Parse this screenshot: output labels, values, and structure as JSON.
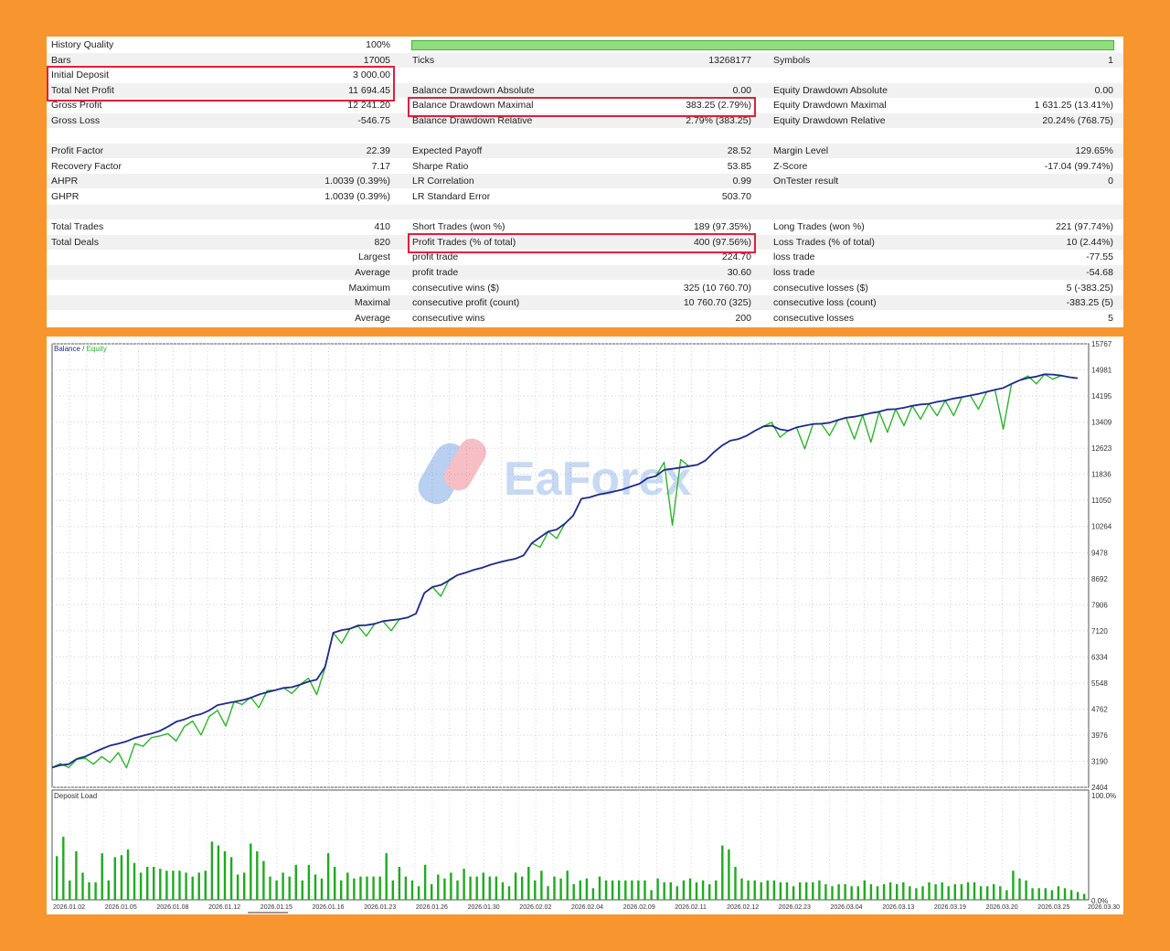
{
  "report": {
    "rows": [
      [
        [
          "History Quality",
          "100%"
        ],
        null,
        null
      ],
      [
        [
          "Bars",
          "17005"
        ],
        [
          "Ticks",
          "13268177"
        ],
        [
          "Symbols",
          "1"
        ]
      ],
      [
        [
          "Initial Deposit",
          "3 000.00"
        ],
        null,
        null
      ],
      [
        [
          "Total Net Profit",
          "11 694.45"
        ],
        [
          "Balance Drawdown Absolute",
          "0.00"
        ],
        [
          "Equity Drawdown Absolute",
          "0.00"
        ]
      ],
      [
        [
          "Gross Profit",
          "12 241.20"
        ],
        [
          "Balance Drawdown Maximal",
          "383.25 (2.79%)"
        ],
        [
          "Equity Drawdown Maximal",
          "1 631.25 (13.41%)"
        ]
      ],
      [
        [
          "Gross Loss",
          "-546.75"
        ],
        [
          "Balance Drawdown Relative",
          "2.79% (383.25)"
        ],
        [
          "Equity Drawdown Relative",
          "20.24% (768.75)"
        ]
      ],
      [
        null,
        null,
        null
      ],
      [
        [
          "Profit Factor",
          "22.39"
        ],
        [
          "Expected Payoff",
          "28.52"
        ],
        [
          "Margin Level",
          "129.65%"
        ]
      ],
      [
        [
          "Recovery Factor",
          "7.17"
        ],
        [
          "Sharpe Ratio",
          "53.85"
        ],
        [
          "Z-Score",
          "-17.04 (99.74%)"
        ]
      ],
      [
        [
          "AHPR",
          "1.0039 (0.39%)"
        ],
        [
          "LR Correlation",
          "0.99"
        ],
        [
          "OnTester result",
          "0"
        ]
      ],
      [
        [
          "GHPR",
          "1.0039 (0.39%)"
        ],
        [
          "LR Standard Error",
          "503.70"
        ],
        null
      ],
      [
        null,
        null,
        null
      ],
      [
        [
          "Total Trades",
          "410"
        ],
        [
          "Short Trades (won %)",
          "189 (97.35%)"
        ],
        [
          "Long Trades (won %)",
          "221 (97.74%)"
        ]
      ],
      [
        [
          "Total Deals",
          "820"
        ],
        [
          "Profit Trades (% of total)",
          "400 (97.56%)"
        ],
        [
          "Loss Trades (% of total)",
          "10 (2.44%)"
        ]
      ],
      [
        [
          "",
          "Largest"
        ],
        [
          "profit trade",
          "224.70"
        ],
        [
          "loss trade",
          "-77.55"
        ]
      ],
      [
        [
          "",
          "Average"
        ],
        [
          "profit trade",
          "30.60"
        ],
        [
          "loss trade",
          "-54.68"
        ]
      ],
      [
        [
          "",
          "Maximum"
        ],
        [
          "consecutive wins ($)",
          "325 (10 760.70)"
        ],
        [
          "consecutive losses ($)",
          "5 (-383.25)"
        ]
      ],
      [
        [
          "",
          "Maximal"
        ],
        [
          "consecutive profit (count)",
          "10 760.70 (325)"
        ],
        [
          "consecutive loss (count)",
          "-383.25 (5)"
        ]
      ],
      [
        [
          "",
          "Average"
        ],
        [
          "consecutive wins",
          "200"
        ],
        [
          "consecutive losses",
          "5"
        ]
      ]
    ]
  },
  "watermark": "EaForex",
  "chart_data": [
    {
      "type": "line",
      "legend": [
        "Balance",
        "/",
        "Equity"
      ],
      "ylim": [
        2404,
        15767
      ],
      "yticks": [
        15767,
        14981,
        14195,
        13409,
        12623,
        11836,
        11050,
        10264,
        9478,
        8692,
        7906,
        7120,
        6334,
        5548,
        4762,
        3976,
        3190,
        2404
      ],
      "series": [
        {
          "name": "Balance",
          "color": "#1f2a8a",
          "values": [
            3000,
            3070,
            3100,
            3260,
            3330,
            3450,
            3560,
            3660,
            3720,
            3790,
            3890,
            3960,
            4020,
            4100,
            4230,
            4380,
            4450,
            4550,
            4610,
            4720,
            4880,
            4930,
            4980,
            5030,
            5100,
            5200,
            5270,
            5330,
            5400,
            5420,
            5500,
            5590,
            5650,
            6030,
            7060,
            7140,
            7180,
            7280,
            7290,
            7330,
            7410,
            7440,
            7470,
            7520,
            7640,
            8260,
            8440,
            8500,
            8640,
            8800,
            8870,
            8960,
            9020,
            9110,
            9180,
            9240,
            9290,
            9390,
            9760,
            9940,
            10110,
            10170,
            10350,
            10590,
            11100,
            11140,
            11220,
            11270,
            11320,
            11380,
            11470,
            11550,
            11720,
            11780,
            11970,
            12000,
            12040,
            12080,
            12120,
            12250,
            12500,
            12700,
            12850,
            12900,
            13000,
            13150,
            13280,
            13300,
            13190,
            13150,
            13250,
            13300,
            13350,
            13360,
            13390,
            13470,
            13540,
            13570,
            13620,
            13680,
            13720,
            13790,
            13800,
            13840,
            13900,
            13940,
            13960,
            14020,
            14060,
            14120,
            14160,
            14210,
            14260,
            14320,
            14380,
            14440,
            14560,
            14670,
            14740,
            14780,
            14850,
            14840,
            14810,
            14760,
            14730
          ]
        },
        {
          "name": "Equity",
          "color": "#2bb52b",
          "values": [
            3000,
            3120,
            3000,
            3250,
            3280,
            3100,
            3330,
            3150,
            3450,
            2990,
            3720,
            3640,
            3900,
            3950,
            4020,
            3800,
            4240,
            4400,
            3980,
            4540,
            4720,
            4250,
            4980,
            4900,
            5120,
            4800,
            5320,
            5330,
            5400,
            5230,
            5500,
            5690,
            5200,
            6000,
            7060,
            6740,
            7180,
            7260,
            6960,
            7330,
            7410,
            7120,
            7470,
            7520,
            7640,
            8260,
            8440,
            8160,
            8660,
            8800,
            8870,
            8960,
            9020,
            9110,
            9180,
            9240,
            9290,
            9390,
            9760,
            9640,
            10110,
            9900,
            10350,
            10590,
            11100,
            11140,
            11220,
            11270,
            11320,
            11380,
            11470,
            11550,
            11720,
            11780,
            12200,
            10300,
            12280,
            12080,
            12120,
            12250,
            12500,
            12700,
            12850,
            12900,
            13000,
            13150,
            13280,
            13400,
            12950,
            13150,
            13250,
            12600,
            13350,
            13360,
            13000,
            13470,
            13540,
            12900,
            13620,
            12800,
            13720,
            13100,
            13800,
            13300,
            13900,
            13500,
            13960,
            13600,
            14060,
            13600,
            14160,
            14210,
            13800,
            14320,
            14380,
            13200,
            14560,
            14670,
            14800,
            14560,
            14850,
            14700,
            14810,
            14760,
            14730
          ]
        }
      ],
      "x_tick_labels": [
        "2026.01.02",
        "2026.01.05",
        "2026.01.08",
        "2026.01.12",
        "2026.01.15",
        "2026.01.16",
        "2026.01.23",
        "2026.01.26",
        "2026.01.30",
        "2026.02.02",
        "2026.02.04",
        "2026.02.09",
        "2026.02.11",
        "2026.02.12",
        "2026.02.23",
        "2026.03.04",
        "2026.03.13",
        "2026.03.19",
        "2026.03.20",
        "2026.03.25",
        "2026.03.30"
      ]
    },
    {
      "type": "bar",
      "title": "Deposit Load",
      "ylim": [
        0,
        100
      ],
      "ytick_labels": [
        "100.0%",
        "0.0%"
      ],
      "color": "#1faa1f",
      "values": [
        45,
        65,
        20,
        50,
        28,
        18,
        18,
        48,
        20,
        44,
        46,
        52,
        38,
        28,
        34,
        34,
        32,
        30,
        30,
        30,
        28,
        24,
        28,
        30,
        60,
        56,
        50,
        44,
        26,
        28,
        58,
        50,
        40,
        24,
        20,
        28,
        24,
        36,
        20,
        36,
        26,
        22,
        48,
        34,
        20,
        28,
        22,
        24,
        24,
        24,
        24,
        48,
        20,
        34,
        24,
        20,
        14,
        36,
        16,
        26,
        22,
        28,
        20,
        32,
        24,
        24,
        28,
        24,
        24,
        18,
        14,
        28,
        24,
        34,
        20,
        30,
        14,
        24,
        22,
        30,
        16,
        20,
        22,
        12,
        24,
        20,
        20,
        20,
        20,
        20,
        20,
        20,
        10,
        22,
        18,
        18,
        14,
        20,
        22,
        18,
        20,
        16,
        20,
        56,
        52,
        34,
        22,
        20,
        20,
        18,
        20,
        20,
        18,
        18,
        14,
        18,
        18,
        18,
        20,
        16,
        14,
        16,
        16,
        14,
        14,
        20,
        16,
        14,
        16,
        18,
        16,
        18,
        14,
        12,
        14,
        18,
        16,
        18,
        14,
        16,
        16,
        18,
        18,
        14,
        14,
        16,
        14,
        10,
        30,
        22,
        20,
        12,
        12,
        12,
        10,
        14,
        12,
        10,
        8,
        6
      ]
    }
  ]
}
